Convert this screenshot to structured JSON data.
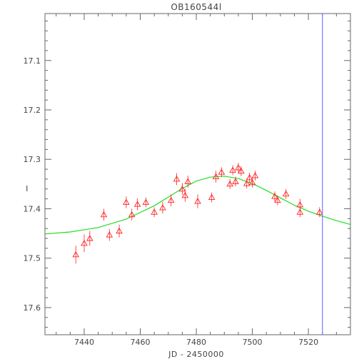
{
  "chart_data": {
    "type": "scatter",
    "title": "OB160544l",
    "xlabel": "JD - 2450000",
    "ylabel": "I",
    "xlim": [
      7426,
      7535
    ],
    "ylim": [
      17.655,
      17.005
    ],
    "y_inverted": true,
    "grid": false,
    "x_ticks": [
      7440,
      7460,
      7480,
      7500,
      7520
    ],
    "y_ticks": [
      17.1,
      17.2,
      17.3,
      17.4,
      17.5,
      17.6
    ],
    "vertical_line_x": 7525,
    "series": [
      {
        "marker": "open-triangle",
        "color": "#ff2020",
        "points": [
          {
            "x": 7437.0,
            "y": 17.493,
            "err": 0.018
          },
          {
            "x": 7440.0,
            "y": 17.47,
            "err": 0.018
          },
          {
            "x": 7442.0,
            "y": 17.46,
            "err": 0.015
          },
          {
            "x": 7447.0,
            "y": 17.412,
            "err": 0.012
          },
          {
            "x": 7449.0,
            "y": 17.453,
            "err": 0.012
          },
          {
            "x": 7452.5,
            "y": 17.445,
            "err": 0.013
          },
          {
            "x": 7455.0,
            "y": 17.387,
            "err": 0.012
          },
          {
            "x": 7457.0,
            "y": 17.412,
            "err": 0.012
          },
          {
            "x": 7459.0,
            "y": 17.391,
            "err": 0.012
          },
          {
            "x": 7462.0,
            "y": 17.387,
            "err": 0.01
          },
          {
            "x": 7465.0,
            "y": 17.407,
            "err": 0.01
          },
          {
            "x": 7468.0,
            "y": 17.398,
            "err": 0.012
          },
          {
            "x": 7471.0,
            "y": 17.383,
            "err": 0.012
          },
          {
            "x": 7473.0,
            "y": 17.34,
            "err": 0.012
          },
          {
            "x": 7475.0,
            "y": 17.36,
            "err": 0.012
          },
          {
            "x": 7476.0,
            "y": 17.373,
            "err": 0.013
          },
          {
            "x": 7477.0,
            "y": 17.345,
            "err": 0.012
          },
          {
            "x": 7480.5,
            "y": 17.385,
            "err": 0.014
          },
          {
            "x": 7485.5,
            "y": 17.377,
            "err": 0.01
          },
          {
            "x": 7487.0,
            "y": 17.335,
            "err": 0.012
          },
          {
            "x": 7489.0,
            "y": 17.326,
            "err": 0.01
          },
          {
            "x": 7492.0,
            "y": 17.35,
            "err": 0.01
          },
          {
            "x": 7493.0,
            "y": 17.322,
            "err": 0.01
          },
          {
            "x": 7494.0,
            "y": 17.345,
            "err": 0.01
          },
          {
            "x": 7495.0,
            "y": 17.317,
            "err": 0.01
          },
          {
            "x": 7496.0,
            "y": 17.324,
            "err": 0.01
          },
          {
            "x": 7498.0,
            "y": 17.349,
            "err": 0.01
          },
          {
            "x": 7499.0,
            "y": 17.337,
            "err": 0.01
          },
          {
            "x": 7500.0,
            "y": 17.347,
            "err": 0.01
          },
          {
            "x": 7501.0,
            "y": 17.333,
            "err": 0.01
          },
          {
            "x": 7508.0,
            "y": 17.375,
            "err": 0.01
          },
          {
            "x": 7509.0,
            "y": 17.383,
            "err": 0.01
          },
          {
            "x": 7512.0,
            "y": 17.37,
            "err": 0.01
          },
          {
            "x": 7517.0,
            "y": 17.392,
            "err": 0.012
          },
          {
            "x": 7517.0,
            "y": 17.407,
            "err": 0.01
          },
          {
            "x": 7524.0,
            "y": 17.407,
            "err": 0.01
          }
        ]
      },
      {
        "line": "model-fit",
        "color": "#22dd22",
        "x": [
          7426,
          7435,
          7445,
          7455,
          7465,
          7475,
          7480,
          7485,
          7490,
          7495,
          7500,
          7505,
          7510,
          7515,
          7520,
          7525,
          7530,
          7535
        ],
        "y": [
          17.451,
          17.447,
          17.438,
          17.421,
          17.394,
          17.359,
          17.344,
          17.336,
          17.334,
          17.339,
          17.349,
          17.363,
          17.378,
          17.393,
          17.405,
          17.415,
          17.424,
          17.432
        ]
      }
    ]
  },
  "colors": {
    "frame": "#666666",
    "text": "#444444",
    "points": "#ff2020",
    "fit": "#22dd22",
    "marker_line": "#7777ff"
  }
}
